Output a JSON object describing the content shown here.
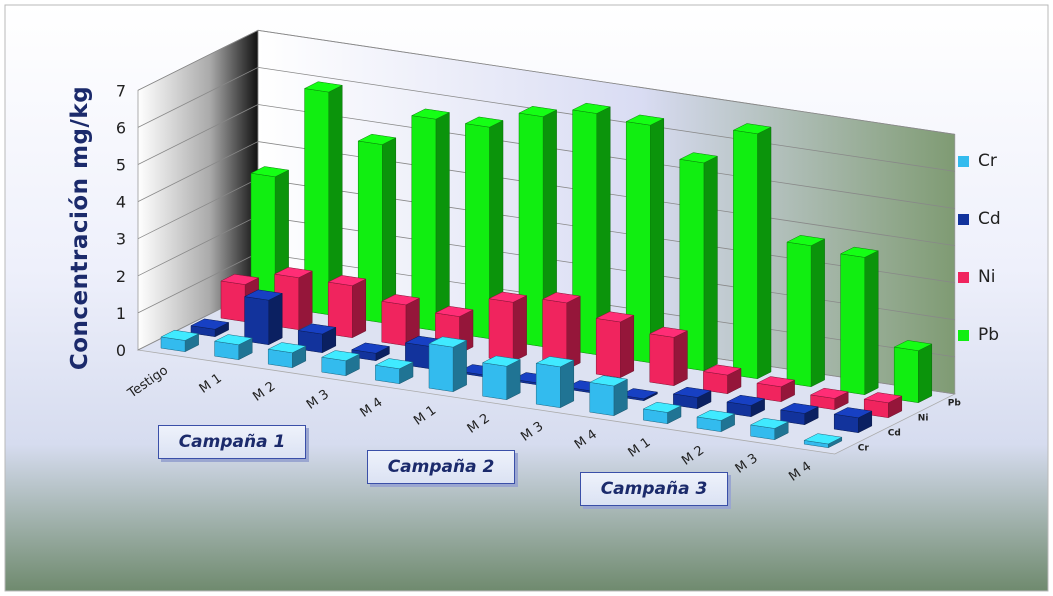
{
  "chart_data": {
    "type": "bar",
    "subtype": "3d-clustered-depth",
    "title": "",
    "ylabel": "Concentración mg/kg",
    "xlabel": "",
    "ylim": [
      0,
      7
    ],
    "y_ticks": [
      0,
      1,
      2,
      3,
      4,
      5,
      6,
      7
    ],
    "grid": true,
    "legend_position": "right",
    "categories": [
      "Testigo",
      "M 1",
      "M 2",
      "M 3",
      "M 4",
      "M 1",
      "M 2",
      "M 3",
      "M 4",
      "M 1",
      "M 2",
      "M 3",
      "M 4"
    ],
    "depth_labels": [
      "Cr",
      "Cd",
      "Ni",
      "Pb"
    ],
    "series": [
      {
        "name": "Cr",
        "color": "#33bbee",
        "values": [
          0.3,
          0.4,
          0.4,
          0.4,
          0.4,
          1.2,
          0.9,
          1.1,
          0.8,
          0.3,
          0.3,
          0.3,
          0.1
        ]
      },
      {
        "name": "Cd",
        "color": "#12339c",
        "values": [
          0.2,
          1.2,
          0.5,
          0.2,
          0.6,
          0.05,
          0.05,
          0.05,
          0.05,
          0.3,
          0.3,
          0.3,
          0.4
        ]
      },
      {
        "name": "Ni",
        "color": "#f0245e",
        "values": [
          1.0,
          1.4,
          1.4,
          1.1,
          1.0,
          1.6,
          1.8,
          1.5,
          1.3,
          0.5,
          0.4,
          0.3,
          0.4
        ]
      },
      {
        "name": "Pb",
        "color": "#11ee11",
        "values": [
          3.5,
          6.0,
          4.8,
          5.7,
          5.7,
          6.2,
          6.5,
          6.4,
          5.6,
          6.6,
          3.8,
          3.7,
          1.4
        ]
      }
    ],
    "groups": [
      {
        "label": "Campaña 1"
      },
      {
        "label": "Campaña 2"
      },
      {
        "label": "Campaña 3"
      }
    ]
  }
}
